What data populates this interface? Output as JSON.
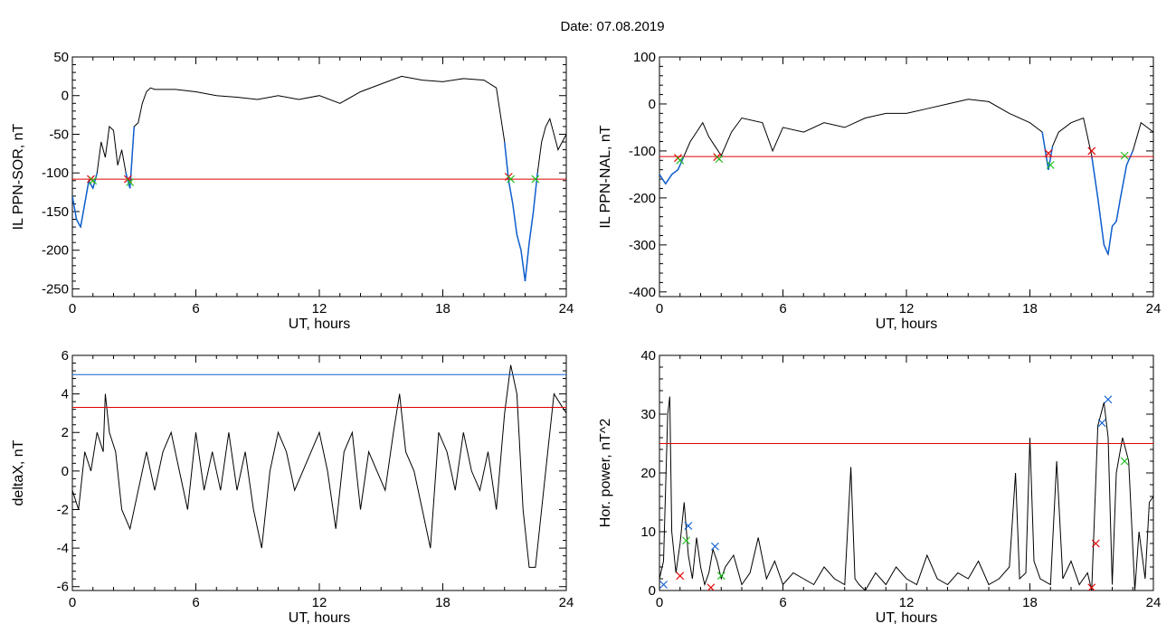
{
  "page": {
    "title": "Date:  07.08.2019"
  },
  "colors": {
    "data_line": "#000000",
    "threshold_red": "#e00000",
    "threshold_blue": "#1060d0",
    "highlight_blue": "#1060d0",
    "marker_red": "#e00000",
    "marker_green": "#20c020",
    "marker_blue": "#1060d0"
  },
  "chart_data": [
    {
      "type": "line",
      "xlabel": "UT, hours",
      "ylabel": "IL PPN-SOR, nT",
      "xlim": [
        0,
        24
      ],
      "ylim": [
        -260,
        50
      ],
      "xticks": [
        0,
        6,
        12,
        18,
        24
      ],
      "yticks": [
        -250,
        -200,
        -150,
        -100,
        -50,
        0,
        50
      ],
      "threshold_lines": [
        {
          "y": -108,
          "color": "red"
        }
      ],
      "highlight_below": -108,
      "series": [
        {
          "x": [
            0,
            0.2,
            0.4,
            0.6,
            0.8,
            1.0,
            1.2,
            1.4,
            1.6,
            1.8,
            2.0,
            2.2,
            2.4,
            2.6,
            2.8,
            3.0,
            3.2,
            3.4,
            3.6,
            3.8,
            4.0,
            5,
            6,
            7,
            8,
            9,
            10,
            11,
            12,
            13,
            14,
            15,
            16,
            17,
            18,
            19,
            20,
            20.6,
            21.0,
            21.2,
            21.4,
            21.6,
            21.8,
            22.0,
            22.2,
            22.4,
            22.6,
            22.8,
            23.0,
            23.2,
            23.4,
            23.6,
            23.8,
            24.0
          ],
          "y": [
            -130,
            -160,
            -170,
            -140,
            -110,
            -120,
            -100,
            -60,
            -80,
            -40,
            -45,
            -90,
            -70,
            -100,
            -120,
            -40,
            -35,
            -10,
            5,
            10,
            8,
            8,
            5,
            0,
            -2,
            -5,
            0,
            -5,
            0,
            -10,
            5,
            15,
            25,
            20,
            18,
            22,
            20,
            10,
            -60,
            -110,
            -140,
            -180,
            -200,
            -240,
            -190,
            -150,
            -100,
            -60,
            -40,
            -30,
            -50,
            -70,
            -60,
            -50
          ]
        }
      ],
      "markers": [
        {
          "x": 0.9,
          "y": -108,
          "color": "red"
        },
        {
          "x": 1.0,
          "y": -110,
          "color": "green"
        },
        {
          "x": 2.7,
          "y": -108,
          "color": "red"
        },
        {
          "x": 2.8,
          "y": -112,
          "color": "green"
        },
        {
          "x": 21.2,
          "y": -105,
          "color": "red"
        },
        {
          "x": 21.3,
          "y": -108,
          "color": "green"
        },
        {
          "x": 22.5,
          "y": -108,
          "color": "green"
        }
      ]
    },
    {
      "type": "line",
      "xlabel": "UT, hours",
      "ylabel": "IL PPN-NAL, nT",
      "xlim": [
        0,
        24
      ],
      "ylim": [
        -410,
        100
      ],
      "xticks": [
        0,
        6,
        12,
        18,
        24
      ],
      "yticks": [
        -400,
        -300,
        -200,
        -100,
        0,
        100
      ],
      "threshold_lines": [
        {
          "y": -112,
          "color": "red"
        }
      ],
      "highlight_below": -112,
      "series": [
        {
          "x": [
            0,
            0.3,
            0.6,
            0.9,
            1.2,
            1.5,
            1.8,
            2.1,
            2.4,
            2.7,
            3.0,
            3.5,
            4,
            5,
            5.5,
            6,
            7,
            8,
            9,
            10,
            11,
            12,
            13,
            14,
            15,
            16,
            17,
            18,
            18.6,
            18.9,
            19.1,
            19.4,
            20,
            20.6,
            21.0,
            21.3,
            21.6,
            21.8,
            22.0,
            22.2,
            22.4,
            22.7,
            23.0,
            23.4,
            23.7,
            24.0
          ],
          "y": [
            -150,
            -170,
            -150,
            -140,
            -110,
            -80,
            -60,
            -40,
            -70,
            -90,
            -110,
            -60,
            -30,
            -40,
            -100,
            -50,
            -60,
            -40,
            -50,
            -30,
            -20,
            -20,
            -10,
            0,
            10,
            5,
            -20,
            -40,
            -60,
            -140,
            -90,
            -60,
            -40,
            -30,
            -110,
            -200,
            -300,
            -320,
            -260,
            -250,
            -200,
            -130,
            -100,
            -40,
            -50,
            -60
          ]
        }
      ],
      "markers": [
        {
          "x": 0.9,
          "y": -115,
          "color": "red"
        },
        {
          "x": 1.0,
          "y": -120,
          "color": "green"
        },
        {
          "x": 2.8,
          "y": -113,
          "color": "red"
        },
        {
          "x": 2.9,
          "y": -117,
          "color": "green"
        },
        {
          "x": 18.9,
          "y": -105,
          "color": "red"
        },
        {
          "x": 19.0,
          "y": -130,
          "color": "green"
        },
        {
          "x": 21.0,
          "y": -100,
          "color": "red"
        },
        {
          "x": 22.6,
          "y": -110,
          "color": "green"
        }
      ]
    },
    {
      "type": "line",
      "xlabel": "UT, hours",
      "ylabel": "deltaX, nT",
      "xlim": [
        0,
        24
      ],
      "ylim": [
        -6.2,
        6
      ],
      "xticks": [
        0,
        6,
        12,
        18,
        24
      ],
      "yticks": [
        -6,
        -4,
        -2,
        0,
        2,
        4,
        6
      ],
      "threshold_lines": [
        {
          "y": 5.0,
          "color": "blue"
        },
        {
          "y": 3.3,
          "color": "red"
        }
      ],
      "series": [
        {
          "x": [
            0,
            0.3,
            0.6,
            0.9,
            1.2,
            1.5,
            1.6,
            1.8,
            2.1,
            2.4,
            2.8,
            3.2,
            3.6,
            4.0,
            4.4,
            4.8,
            5.2,
            5.6,
            6.0,
            6.4,
            6.8,
            7.2,
            7.6,
            8.0,
            8.4,
            8.8,
            9.2,
            9.6,
            10.0,
            10.4,
            10.8,
            11.2,
            11.6,
            12.0,
            12.4,
            12.8,
            13.2,
            13.6,
            14.0,
            14.4,
            14.8,
            15.2,
            15.6,
            15.9,
            16.2,
            16.6,
            17.0,
            17.4,
            17.8,
            18.2,
            18.6,
            19.0,
            19.4,
            19.8,
            20.2,
            20.6,
            21.0,
            21.3,
            21.6,
            21.9,
            22.2,
            22.5,
            22.8,
            23.1,
            23.4,
            23.7,
            24.0
          ],
          "y": [
            -1,
            -2,
            1,
            0,
            2,
            1,
            4,
            2,
            1,
            -2,
            -3,
            -1,
            1,
            -1,
            1,
            2,
            0,
            -2,
            2,
            -1,
            1,
            -1,
            2,
            -1,
            1,
            -2,
            -4,
            0,
            2,
            1,
            -1,
            0,
            1,
            2,
            0,
            -3,
            1,
            2,
            -2,
            1,
            0,
            -1,
            2,
            4,
            1,
            0,
            -2,
            -4,
            2,
            1,
            -1,
            2,
            0,
            -1,
            1,
            -2,
            3,
            5.5,
            4,
            -2,
            -5,
            -5,
            -2,
            1,
            4,
            3.5,
            3
          ]
        }
      ],
      "markers": []
    },
    {
      "type": "line",
      "xlabel": "UT, hours",
      "ylabel": "Hor. power, nT^2",
      "xlim": [
        0,
        24
      ],
      "ylim": [
        0,
        40
      ],
      "xticks": [
        0,
        6,
        12,
        18,
        24
      ],
      "yticks": [
        0,
        10,
        20,
        30,
        40
      ],
      "threshold_lines": [
        {
          "y": 25,
          "color": "red"
        }
      ],
      "series": [
        {
          "x": [
            0,
            0.2,
            0.4,
            0.5,
            0.6,
            0.8,
            1.0,
            1.2,
            1.4,
            1.6,
            1.8,
            2.0,
            2.2,
            2.4,
            2.6,
            2.8,
            3.0,
            3.2,
            3.6,
            4.0,
            4.4,
            4.8,
            5.2,
            5.6,
            6.0,
            6.5,
            7.0,
            7.5,
            8.0,
            8.5,
            9.0,
            9.3,
            9.5,
            9.7,
            10.0,
            10.5,
            11.0,
            11.5,
            12.0,
            12.5,
            13.0,
            13.5,
            14.0,
            14.5,
            15.0,
            15.5,
            16.0,
            16.5,
            17.0,
            17.3,
            17.5,
            17.8,
            18.0,
            18.2,
            18.5,
            19.0,
            19.3,
            19.6,
            20.0,
            20.4,
            20.8,
            21.0,
            21.3,
            21.6,
            21.8,
            22.0,
            22.2,
            22.5,
            22.8,
            23.1,
            23.3,
            23.6,
            23.8,
            24.0
          ],
          "y": [
            2,
            5,
            30,
            33,
            10,
            3,
            8,
            15,
            6,
            2,
            9,
            4,
            1,
            3,
            7,
            5,
            2,
            4,
            6,
            1,
            3,
            9,
            2,
            5,
            1,
            3,
            2,
            1,
            4,
            2,
            1,
            21,
            2,
            1,
            0,
            3,
            1,
            4,
            2,
            1,
            6,
            2,
            1,
            3,
            2,
            5,
            1,
            2,
            4,
            20,
            2,
            3,
            26,
            5,
            2,
            1,
            22,
            2,
            5,
            1,
            3,
            0,
            28,
            32,
            26,
            1,
            20,
            26,
            22,
            0,
            10,
            2,
            15,
            16
          ]
        }
      ],
      "markers": [
        {
          "x": 0.2,
          "y": 1,
          "color": "blue"
        },
        {
          "x": 1.0,
          "y": 2.5,
          "color": "red"
        },
        {
          "x": 1.3,
          "y": 8.5,
          "color": "green"
        },
        {
          "x": 1.4,
          "y": 11,
          "color": "blue"
        },
        {
          "x": 2.5,
          "y": 0.5,
          "color": "red"
        },
        {
          "x": 2.7,
          "y": 7.5,
          "color": "blue"
        },
        {
          "x": 3.0,
          "y": 2.5,
          "color": "green"
        },
        {
          "x": 21.0,
          "y": 0.5,
          "color": "red"
        },
        {
          "x": 21.2,
          "y": 8,
          "color": "red"
        },
        {
          "x": 21.5,
          "y": 28.5,
          "color": "blue"
        },
        {
          "x": 21.8,
          "y": 32.5,
          "color": "blue"
        },
        {
          "x": 22.6,
          "y": 22,
          "color": "green"
        }
      ]
    }
  ]
}
